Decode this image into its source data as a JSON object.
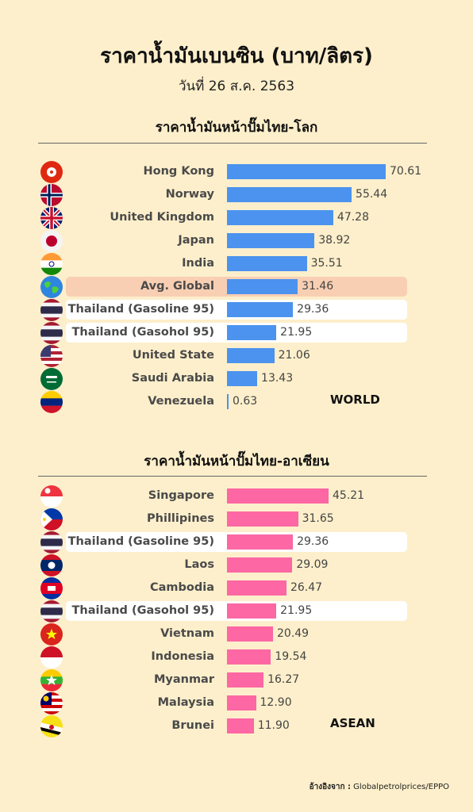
{
  "title": "ราคาน้ำมันเบนซิน (บาท/ลิตร)",
  "subtitle": "วันที่ 26 ส.ค. 2563",
  "source_label": "อ้างอิงจาก :",
  "source_value": "Globalpetrolprices/EPPO",
  "colors": {
    "background": "#FDEFCB",
    "world_bar": "#4B93EE",
    "asean_bar": "#FC67A4",
    "avg_highlight": "#F9CFB3",
    "thai_highlight": "#FFFFFF"
  },
  "chart_data": [
    {
      "type": "bar",
      "orientation": "horizontal",
      "title": "ราคาน้ำมันหน้าปั๊มไทย-โลก",
      "tag": "WORLD",
      "categories": [
        "Hong Kong",
        "Norway",
        "United Kingdom",
        "Japan",
        "India",
        "Avg. Global",
        "Thailand (Gasoline 95)",
        "Thailand (Gasohol 95)",
        "United State",
        "Saudi Arabia",
        "Venezuela"
      ],
      "values": [
        70.61,
        55.44,
        47.28,
        38.92,
        35.51,
        31.46,
        29.36,
        21.95,
        21.06,
        13.43,
        0.63
      ],
      "value_labels": [
        "70.61",
        "55.44",
        "47.28",
        "38.92",
        "35.51",
        "31.46",
        "29.36",
        "21.95",
        "21.06",
        "13.43",
        "0.63"
      ],
      "highlights": [
        "none",
        "none",
        "none",
        "none",
        "none",
        "avg",
        "thai",
        "thai",
        "none",
        "none",
        "none"
      ],
      "flags": [
        "hong-kong-flag-icon",
        "norway-flag-icon",
        "united-kingdom-flag-icon",
        "japan-flag-icon",
        "india-flag-icon",
        "globe-icon",
        "thailand-flag-icon",
        "thailand-flag-icon",
        "united-states-flag-icon",
        "saudi-arabia-flag-icon",
        "venezuela-flag-icon"
      ],
      "color": "#4B93EE"
    },
    {
      "type": "bar",
      "orientation": "horizontal",
      "title": "ราคาน้ำมันหน้าปั๊มไทย-อาเซียน",
      "tag": "ASEAN",
      "categories": [
        "Singapore",
        "Phillipines",
        "Thailand (Gasoline 95)",
        "Laos",
        "Cambodia",
        "Thailand (Gasohol 95)",
        "Vietnam",
        "Indonesia",
        "Myanmar",
        "Malaysia",
        "Brunei"
      ],
      "values": [
        45.21,
        31.65,
        29.36,
        29.09,
        26.47,
        21.95,
        20.49,
        19.54,
        16.27,
        12.9,
        11.9
      ],
      "value_labels": [
        "45.21",
        "31.65",
        "29.36",
        "29.09",
        "26.47",
        "21.95",
        "20.49",
        "19.54",
        "16.27",
        "12.90",
        "11.90"
      ],
      "highlights": [
        "none",
        "none",
        "thai",
        "none",
        "none",
        "thai",
        "none",
        "none",
        "none",
        "none",
        "none"
      ],
      "flags": [
        "singapore-flag-icon",
        "philippines-flag-icon",
        "thailand-flag-icon",
        "laos-flag-icon",
        "cambodia-flag-icon",
        "thailand-flag-icon",
        "vietnam-flag-icon",
        "indonesia-flag-icon",
        "myanmar-flag-icon",
        "malaysia-flag-icon",
        "brunei-flag-icon"
      ],
      "color": "#FC67A4"
    }
  ]
}
